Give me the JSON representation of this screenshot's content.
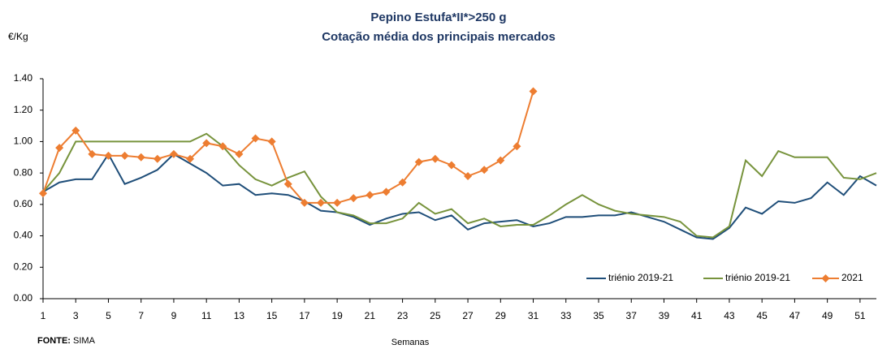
{
  "chart_data": {
    "type": "line",
    "title": "Pepino Estufa*II*>250 g",
    "subtitle": "Cotação média dos principais mercados",
    "y_label": "€/Kg",
    "x_label": "Semanas",
    "source": {
      "label": "FONTE:",
      "text": "SIMA"
    },
    "x": [
      1,
      2,
      3,
      4,
      5,
      6,
      7,
      8,
      9,
      10,
      11,
      12,
      13,
      14,
      15,
      16,
      17,
      18,
      19,
      20,
      21,
      22,
      23,
      24,
      25,
      26,
      27,
      28,
      29,
      30,
      31,
      32,
      33,
      34,
      35,
      36,
      37,
      38,
      39,
      40,
      41,
      42,
      43,
      44,
      45,
      46,
      47,
      48,
      49,
      50,
      51,
      52
    ],
    "xlim": [
      1,
      52
    ],
    "xticks": [
      1,
      3,
      5,
      7,
      9,
      11,
      13,
      15,
      17,
      19,
      21,
      23,
      25,
      27,
      29,
      31,
      33,
      35,
      37,
      39,
      41,
      43,
      45,
      47,
      49,
      51
    ],
    "ylim": [
      0,
      1.4
    ],
    "yticks": [
      {
        "value": 0,
        "label": "0.00"
      },
      {
        "value": 0.2,
        "label": "0.20"
      },
      {
        "value": 0.4,
        "label": "0.40"
      },
      {
        "value": 0.6,
        "label": "0.60"
      },
      {
        "value": 0.8,
        "label": "0.80"
      },
      {
        "value": 1,
        "label": "1.00"
      },
      {
        "value": 1.2,
        "label": "1.20"
      },
      {
        "value": 1.4,
        "label": "1.40"
      }
    ],
    "legend": "bottom-right",
    "series": [
      {
        "name": "triénio 2019-21",
        "color": "#1f4e79",
        "marker": false,
        "values": [
          0.68,
          0.74,
          0.76,
          0.76,
          0.92,
          0.73,
          0.77,
          0.82,
          0.92,
          0.86,
          0.8,
          0.72,
          0.73,
          0.66,
          0.67,
          0.66,
          0.62,
          0.56,
          0.55,
          0.52,
          0.47,
          0.51,
          0.54,
          0.55,
          0.5,
          0.53,
          0.44,
          0.48,
          0.49,
          0.5,
          0.46,
          0.48,
          0.52,
          0.52,
          0.53,
          0.53,
          0.55,
          0.52,
          0.49,
          0.44,
          0.39,
          0.38,
          0.45,
          0.58,
          0.54,
          0.62,
          0.61,
          0.64,
          0.74,
          0.66,
          0.78,
          0.72
        ]
      },
      {
        "name": "triénio 2019-21",
        "color": "#77933c",
        "marker": false,
        "values": [
          0.68,
          0.8,
          1.0,
          1.0,
          1.0,
          1.0,
          1.0,
          1.0,
          1.0,
          1.0,
          1.05,
          0.97,
          0.85,
          0.76,
          0.72,
          0.77,
          0.81,
          0.65,
          0.55,
          0.53,
          0.48,
          0.48,
          0.51,
          0.61,
          0.54,
          0.57,
          0.48,
          0.51,
          0.46,
          0.47,
          0.47,
          0.53,
          0.6,
          0.66,
          0.6,
          0.56,
          0.54,
          0.53,
          0.52,
          0.49,
          0.4,
          0.39,
          0.46,
          0.88,
          0.78,
          0.94,
          0.9,
          0.9,
          0.9,
          0.77,
          0.76,
          0.8
        ]
      },
      {
        "name": "2021",
        "color": "#ed7d31",
        "marker": true,
        "values": [
          0.67,
          0.96,
          1.07,
          0.92,
          0.91,
          0.91,
          0.9,
          0.89,
          0.92,
          0.89,
          0.99,
          0.97,
          0.92,
          1.02,
          1.0,
          0.73,
          0.61,
          0.61,
          0.61,
          0.64,
          0.66,
          0.68,
          0.74,
          0.87,
          0.89,
          0.85,
          0.78,
          0.82,
          0.88,
          0.97,
          1.32,
          null,
          null,
          null,
          null,
          null,
          null,
          null,
          null,
          null,
          null,
          null,
          null,
          null,
          null,
          null,
          null,
          null,
          null,
          null,
          null,
          null
        ]
      }
    ]
  }
}
